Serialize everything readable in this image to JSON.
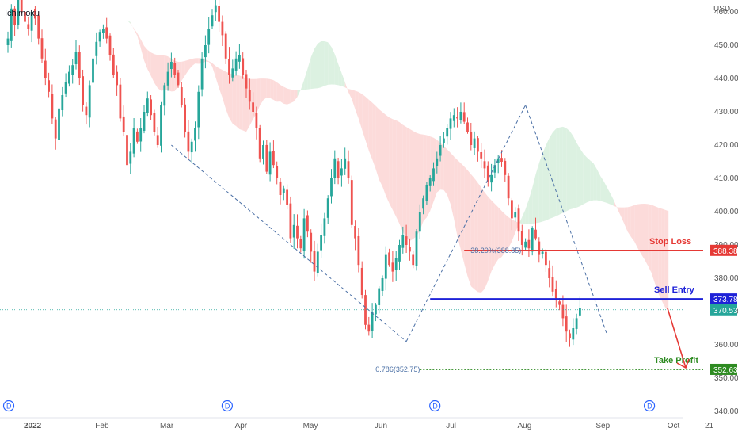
{
  "header": {
    "indicator_label": "Ichimoku",
    "currency_label": "USD"
  },
  "chart_data": {
    "type": "candlestick",
    "ylim": [
      340,
      464
    ],
    "y_ticks": [
      340,
      350,
      360,
      370,
      380,
      390,
      400,
      410,
      420,
      430,
      440,
      450,
      460
    ],
    "y_tick_labels": [
      "340.00",
      "350.00",
      "360.00",
      "370.00",
      "380.00",
      "390.00",
      "400.00",
      "410.00",
      "420.00",
      "430.00",
      "440.00",
      "450.00",
      "460.00"
    ],
    "x_ticks": [
      {
        "label": "2022",
        "bar": 0,
        "bold": true
      },
      {
        "label": "Feb",
        "bar": 21
      },
      {
        "label": "Mar",
        "bar": 40
      },
      {
        "label": "Apr",
        "bar": 62
      },
      {
        "label": "May",
        "bar": 82
      },
      {
        "label": "Jun",
        "bar": 103
      },
      {
        "label": "Jul",
        "bar": 124
      },
      {
        "label": "Aug",
        "bar": 145
      },
      {
        "label": "Sep",
        "bar": 168
      },
      {
        "label": "Oct",
        "bar": 189
      },
      {
        "label": "21",
        "bar": 200
      }
    ],
    "closes": [
      452,
      461,
      456,
      464,
      460,
      457,
      455,
      460,
      458,
      452,
      446,
      440,
      436,
      428,
      422,
      431,
      435,
      439,
      442,
      444,
      448,
      440,
      432,
      429,
      438,
      446,
      451,
      454,
      455,
      452,
      447,
      441,
      438,
      428,
      424,
      414,
      418,
      425,
      421,
      425,
      430,
      434,
      429,
      424,
      420,
      432,
      438,
      442,
      445,
      441,
      438,
      432,
      424,
      418,
      421,
      425,
      436,
      446,
      450,
      455,
      459,
      462,
      457,
      453,
      446,
      441,
      443,
      446,
      447,
      441,
      437,
      433,
      430,
      425,
      416,
      420,
      412,
      418,
      414,
      410,
      405,
      407,
      402,
      392,
      396,
      392,
      389,
      398,
      394,
      388,
      382,
      388,
      393,
      398,
      404,
      410,
      416,
      410,
      413,
      416,
      410,
      396,
      392,
      384,
      375,
      366,
      364,
      370,
      372,
      377,
      380,
      387,
      384,
      382,
      386,
      390,
      393,
      390,
      388,
      384,
      394,
      400,
      404,
      408,
      410,
      413,
      416,
      420,
      422,
      425,
      428,
      429,
      428,
      430,
      427,
      424,
      420,
      422,
      418,
      416,
      413,
      409,
      411,
      414,
      416,
      415,
      411,
      404,
      398,
      400,
      394,
      390,
      391,
      389,
      395,
      392,
      387,
      388,
      384,
      380,
      376,
      374,
      372,
      368,
      364,
      362,
      365,
      368,
      371
    ],
    "price_labels": [
      {
        "name": "Stop Loss",
        "value": 388.38,
        "text": "388.38",
        "color": "#e53935"
      },
      {
        "name": "Sell Entry",
        "value": 373.78,
        "text": "373.78",
        "color": "#1e22d8"
      },
      {
        "name": "Last Price",
        "value": 370.53,
        "text": "370.53",
        "color": "#26a69a"
      },
      {
        "name": "Take Profit",
        "value": 352.63,
        "text": "352.63",
        "color": "#2e8b22"
      }
    ],
    "annotations": {
      "stop_loss": "Stop Loss",
      "sell_entry": "Sell Entry",
      "take_profit": "Take Profit",
      "fib_382": "38.20%(388.85)",
      "fib_786": "0.786(352.75)"
    },
    "zigzag": [
      {
        "bar": 48,
        "value": 420
      },
      {
        "bar": 117,
        "value": 361
      },
      {
        "bar": 152,
        "value": 432
      },
      {
        "bar": 176,
        "value": 363
      }
    ],
    "dividend_markers": [
      {
        "label": "D",
        "bar": 0
      },
      {
        "label": "D",
        "bar": 63
      },
      {
        "label": "D",
        "bar": 124
      },
      {
        "label": "D",
        "bar": 187
      }
    ],
    "colors": {
      "up": "#26a69a",
      "down": "#ef5350",
      "cloud_bear": "#fbd5d3",
      "cloud_bull": "#d6efdc",
      "stop": "#e53935",
      "entry": "#1e22d8",
      "tp": "#2e8b22",
      "zig": "#4a6fa5"
    }
  }
}
